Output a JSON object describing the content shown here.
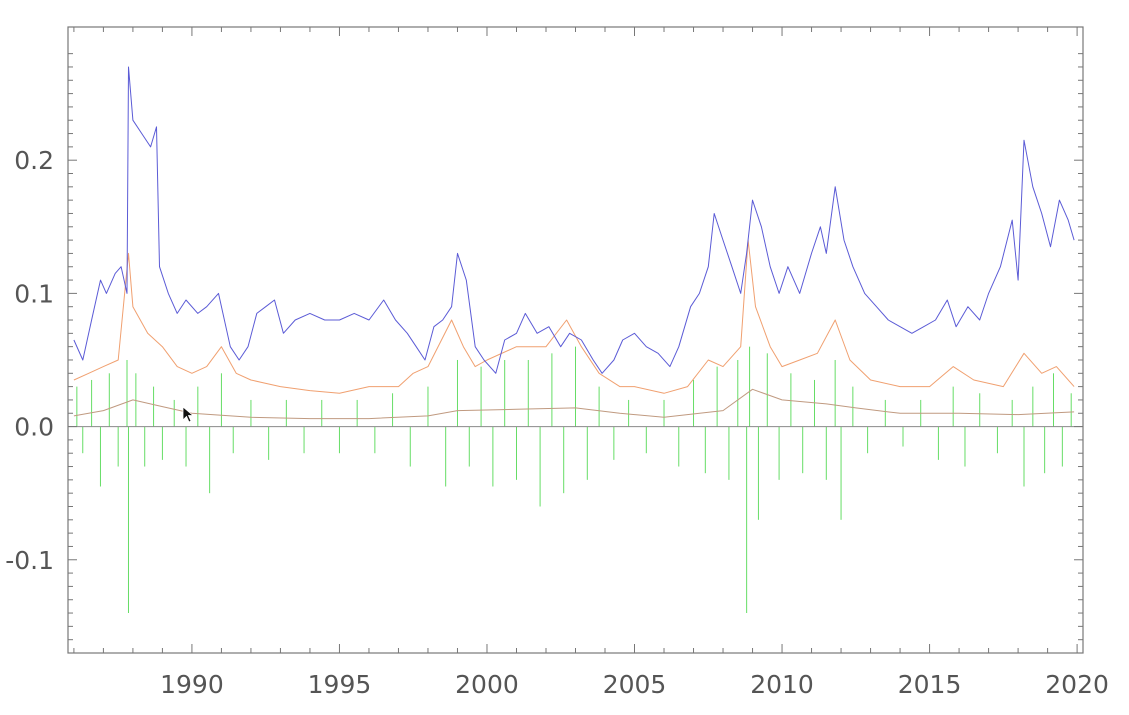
{
  "chart_data": {
    "type": "line",
    "title": "",
    "xlabel": "",
    "ylabel": "",
    "xlim": [
      1985.8,
      2020.2
    ],
    "ylim": [
      -0.17,
      0.3
    ],
    "x_ticks": [
      1990,
      1995,
      2000,
      2005,
      2010,
      2015,
      2020
    ],
    "x_tick_labels": [
      "1990",
      "1995",
      "2000",
      "2005",
      "2010",
      "2015",
      "2020"
    ],
    "y_ticks": [
      -0.1,
      0.0,
      0.1,
      0.2
    ],
    "y_tick_labels": [
      "-0.1",
      "0.0",
      "0.1",
      "0.2"
    ],
    "grid": false,
    "legend": "none",
    "colors": {
      "blue": "#5b5bd6",
      "orange": "#f0a070",
      "green": "#66dd66",
      "dark": "#c09a80",
      "zero_line": "#8a8a8a",
      "frame": "#777777",
      "tick_text": "#555555"
    },
    "series": [
      {
        "color": "blue",
        "style": "line",
        "points": [
          [
            1986.0,
            0.065
          ],
          [
            1986.3,
            0.05
          ],
          [
            1986.6,
            0.08
          ],
          [
            1986.9,
            0.11
          ],
          [
            1987.1,
            0.1
          ],
          [
            1987.4,
            0.115
          ],
          [
            1987.6,
            0.12
          ],
          [
            1987.8,
            0.1
          ],
          [
            1987.85,
            0.27
          ],
          [
            1988.0,
            0.23
          ],
          [
            1988.3,
            0.22
          ],
          [
            1988.6,
            0.21
          ],
          [
            1988.8,
            0.225
          ],
          [
            1988.9,
            0.12
          ],
          [
            1989.2,
            0.1
          ],
          [
            1989.5,
            0.085
          ],
          [
            1989.8,
            0.095
          ],
          [
            1990.2,
            0.085
          ],
          [
            1990.5,
            0.09
          ],
          [
            1990.9,
            0.1
          ],
          [
            1991.3,
            0.06
          ],
          [
            1991.6,
            0.05
          ],
          [
            1991.9,
            0.06
          ],
          [
            1992.2,
            0.085
          ],
          [
            1992.5,
            0.09
          ],
          [
            1992.8,
            0.095
          ],
          [
            1993.1,
            0.07
          ],
          [
            1993.5,
            0.08
          ],
          [
            1994.0,
            0.085
          ],
          [
            1994.5,
            0.08
          ],
          [
            1995.0,
            0.08
          ],
          [
            1995.5,
            0.085
          ],
          [
            1996.0,
            0.08
          ],
          [
            1996.5,
            0.095
          ],
          [
            1996.9,
            0.08
          ],
          [
            1997.3,
            0.07
          ],
          [
            1997.6,
            0.06
          ],
          [
            1997.9,
            0.05
          ],
          [
            1998.2,
            0.075
          ],
          [
            1998.5,
            0.08
          ],
          [
            1998.8,
            0.09
          ],
          [
            1999.0,
            0.13
          ],
          [
            1999.3,
            0.11
          ],
          [
            1999.6,
            0.06
          ],
          [
            1999.9,
            0.05
          ],
          [
            2000.3,
            0.04
          ],
          [
            2000.6,
            0.065
          ],
          [
            2001.0,
            0.07
          ],
          [
            2001.3,
            0.085
          ],
          [
            2001.7,
            0.07
          ],
          [
            2002.1,
            0.075
          ],
          [
            2002.5,
            0.06
          ],
          [
            2002.8,
            0.07
          ],
          [
            2003.2,
            0.065
          ],
          [
            2003.6,
            0.05
          ],
          [
            2003.9,
            0.04
          ],
          [
            2004.3,
            0.05
          ],
          [
            2004.6,
            0.065
          ],
          [
            2005.0,
            0.07
          ],
          [
            2005.4,
            0.06
          ],
          [
            2005.8,
            0.055
          ],
          [
            2006.2,
            0.045
          ],
          [
            2006.5,
            0.06
          ],
          [
            2006.9,
            0.09
          ],
          [
            2007.2,
            0.1
          ],
          [
            2007.5,
            0.12
          ],
          [
            2007.7,
            0.16
          ],
          [
            2008.0,
            0.14
          ],
          [
            2008.3,
            0.12
          ],
          [
            2008.6,
            0.1
          ],
          [
            2008.8,
            0.13
          ],
          [
            2009.0,
            0.17
          ],
          [
            2009.3,
            0.15
          ],
          [
            2009.6,
            0.12
          ],
          [
            2009.9,
            0.1
          ],
          [
            2010.2,
            0.12
          ],
          [
            2010.6,
            0.1
          ],
          [
            2011.0,
            0.13
          ],
          [
            2011.3,
            0.15
          ],
          [
            2011.5,
            0.13
          ],
          [
            2011.8,
            0.18
          ],
          [
            2012.1,
            0.14
          ],
          [
            2012.4,
            0.12
          ],
          [
            2012.8,
            0.1
          ],
          [
            2013.2,
            0.09
          ],
          [
            2013.6,
            0.08
          ],
          [
            2014.0,
            0.075
          ],
          [
            2014.4,
            0.07
          ],
          [
            2014.8,
            0.075
          ],
          [
            2015.2,
            0.08
          ],
          [
            2015.6,
            0.095
          ],
          [
            2015.9,
            0.075
          ],
          [
            2016.3,
            0.09
          ],
          [
            2016.7,
            0.08
          ],
          [
            2017.0,
            0.1
          ],
          [
            2017.4,
            0.12
          ],
          [
            2017.8,
            0.155
          ],
          [
            2018.0,
            0.11
          ],
          [
            2018.2,
            0.215
          ],
          [
            2018.5,
            0.18
          ],
          [
            2018.8,
            0.16
          ],
          [
            2019.1,
            0.135
          ],
          [
            2019.4,
            0.17
          ],
          [
            2019.7,
            0.155
          ],
          [
            2019.9,
            0.14
          ]
        ]
      },
      {
        "color": "orange",
        "style": "line",
        "points": [
          [
            1986.0,
            0.035
          ],
          [
            1986.5,
            0.04
          ],
          [
            1987.0,
            0.045
          ],
          [
            1987.5,
            0.05
          ],
          [
            1987.85,
            0.13
          ],
          [
            1988.0,
            0.09
          ],
          [
            1988.5,
            0.07
          ],
          [
            1989.0,
            0.06
          ],
          [
            1989.5,
            0.045
          ],
          [
            1990.0,
            0.04
          ],
          [
            1990.5,
            0.045
          ],
          [
            1991.0,
            0.06
          ],
          [
            1991.5,
            0.04
          ],
          [
            1992.0,
            0.035
          ],
          [
            1993.0,
            0.03
          ],
          [
            1994.0,
            0.027
          ],
          [
            1995.0,
            0.025
          ],
          [
            1996.0,
            0.03
          ],
          [
            1997.0,
            0.03
          ],
          [
            1997.5,
            0.04
          ],
          [
            1998.0,
            0.045
          ],
          [
            1998.8,
            0.08
          ],
          [
            1999.2,
            0.06
          ],
          [
            1999.6,
            0.045
          ],
          [
            2000.0,
            0.05
          ],
          [
            2001.0,
            0.06
          ],
          [
            2002.0,
            0.06
          ],
          [
            2002.7,
            0.08
          ],
          [
            2003.2,
            0.06
          ],
          [
            2003.8,
            0.04
          ],
          [
            2004.5,
            0.03
          ],
          [
            2005.0,
            0.03
          ],
          [
            2006.0,
            0.025
          ],
          [
            2006.8,
            0.03
          ],
          [
            2007.5,
            0.05
          ],
          [
            2008.0,
            0.045
          ],
          [
            2008.6,
            0.06
          ],
          [
            2008.85,
            0.14
          ],
          [
            2009.1,
            0.09
          ],
          [
            2009.6,
            0.06
          ],
          [
            2010.0,
            0.045
          ],
          [
            2010.6,
            0.05
          ],
          [
            2011.2,
            0.055
          ],
          [
            2011.8,
            0.08
          ],
          [
            2012.3,
            0.05
          ],
          [
            2013.0,
            0.035
          ],
          [
            2014.0,
            0.03
          ],
          [
            2015.0,
            0.03
          ],
          [
            2015.8,
            0.045
          ],
          [
            2016.5,
            0.035
          ],
          [
            2017.5,
            0.03
          ],
          [
            2018.2,
            0.055
          ],
          [
            2018.8,
            0.04
          ],
          [
            2019.3,
            0.045
          ],
          [
            2019.9,
            0.03
          ]
        ]
      },
      {
        "color": "dark",
        "style": "line",
        "points": [
          [
            1986.0,
            0.008
          ],
          [
            1987.0,
            0.012
          ],
          [
            1988.0,
            0.02
          ],
          [
            1989.0,
            0.015
          ],
          [
            1990.0,
            0.01
          ],
          [
            1992.0,
            0.007
          ],
          [
            1994.0,
            0.006
          ],
          [
            1996.0,
            0.006
          ],
          [
            1998.0,
            0.008
          ],
          [
            1999.0,
            0.012
          ],
          [
            2001.0,
            0.013
          ],
          [
            2003.0,
            0.014
          ],
          [
            2004.5,
            0.01
          ],
          [
            2006.0,
            0.007
          ],
          [
            2008.0,
            0.012
          ],
          [
            2009.0,
            0.028
          ],
          [
            2010.0,
            0.02
          ],
          [
            2011.5,
            0.017
          ],
          [
            2012.5,
            0.014
          ],
          [
            2014.0,
            0.01
          ],
          [
            2016.0,
            0.01
          ],
          [
            2018.0,
            0.009
          ],
          [
            2019.9,
            0.011
          ]
        ]
      },
      {
        "color": "green",
        "style": "spikes",
        "points": [
          [
            1986.1,
            0.03
          ],
          [
            1986.3,
            -0.02
          ],
          [
            1986.6,
            0.035
          ],
          [
            1986.9,
            -0.045
          ],
          [
            1987.2,
            0.04
          ],
          [
            1987.5,
            -0.03
          ],
          [
            1987.8,
            0.05
          ],
          [
            1987.85,
            -0.14
          ],
          [
            1988.1,
            0.04
          ],
          [
            1988.4,
            -0.03
          ],
          [
            1988.7,
            0.03
          ],
          [
            1989.0,
            -0.025
          ],
          [
            1989.4,
            0.02
          ],
          [
            1989.8,
            -0.03
          ],
          [
            1990.2,
            0.03
          ],
          [
            1990.6,
            -0.05
          ],
          [
            1991.0,
            0.04
          ],
          [
            1991.4,
            -0.02
          ],
          [
            1992.0,
            0.02
          ],
          [
            1992.6,
            -0.025
          ],
          [
            1993.2,
            0.02
          ],
          [
            1993.8,
            -0.02
          ],
          [
            1994.4,
            0.02
          ],
          [
            1995.0,
            -0.02
          ],
          [
            1995.6,
            0.02
          ],
          [
            1996.2,
            -0.02
          ],
          [
            1996.8,
            0.025
          ],
          [
            1997.4,
            -0.03
          ],
          [
            1998.0,
            0.03
          ],
          [
            1998.6,
            -0.045
          ],
          [
            1999.0,
            0.05
          ],
          [
            1999.4,
            -0.03
          ],
          [
            1999.8,
            0.045
          ],
          [
            2000.2,
            -0.045
          ],
          [
            2000.6,
            0.05
          ],
          [
            2001.0,
            -0.04
          ],
          [
            2001.4,
            0.05
          ],
          [
            2001.8,
            -0.06
          ],
          [
            2002.2,
            0.055
          ],
          [
            2002.6,
            -0.05
          ],
          [
            2003.0,
            0.06
          ],
          [
            2003.4,
            -0.04
          ],
          [
            2003.8,
            0.03
          ],
          [
            2004.3,
            -0.025
          ],
          [
            2004.8,
            0.02
          ],
          [
            2005.4,
            -0.02
          ],
          [
            2006.0,
            0.02
          ],
          [
            2006.5,
            -0.03
          ],
          [
            2007.0,
            0.035
          ],
          [
            2007.4,
            -0.035
          ],
          [
            2007.8,
            0.045
          ],
          [
            2008.2,
            -0.04
          ],
          [
            2008.5,
            0.05
          ],
          [
            2008.8,
            -0.14
          ],
          [
            2008.9,
            0.06
          ],
          [
            2009.2,
            -0.07
          ],
          [
            2009.5,
            0.055
          ],
          [
            2009.9,
            -0.04
          ],
          [
            2010.3,
            0.04
          ],
          [
            2010.7,
            -0.035
          ],
          [
            2011.1,
            0.035
          ],
          [
            2011.5,
            -0.04
          ],
          [
            2011.8,
            0.05
          ],
          [
            2012.0,
            -0.07
          ],
          [
            2012.4,
            0.03
          ],
          [
            2012.9,
            -0.02
          ],
          [
            2013.5,
            0.02
          ],
          [
            2014.1,
            -0.015
          ],
          [
            2014.7,
            0.02
          ],
          [
            2015.3,
            -0.025
          ],
          [
            2015.8,
            0.03
          ],
          [
            2016.2,
            -0.03
          ],
          [
            2016.7,
            0.025
          ],
          [
            2017.3,
            -0.02
          ],
          [
            2017.8,
            0.02
          ],
          [
            2018.2,
            -0.045
          ],
          [
            2018.5,
            0.03
          ],
          [
            2018.9,
            -0.035
          ],
          [
            2019.2,
            0.04
          ],
          [
            2019.5,
            -0.03
          ],
          [
            2019.8,
            0.025
          ]
        ]
      }
    ]
  }
}
